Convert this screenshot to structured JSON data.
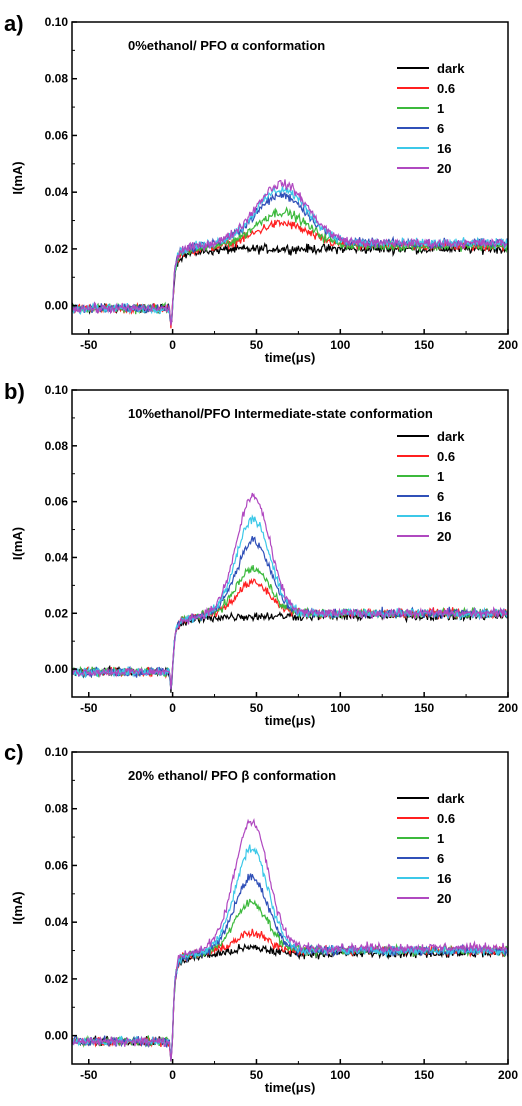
{
  "chart_data": [
    {
      "type": "line",
      "panel_label": "a)",
      "title": "0%ethanol/ PFO α conformation",
      "xlabel": "time(μs)",
      "ylabel": "I(mA)",
      "xlim": [
        -60,
        200
      ],
      "ylim": [
        -0.01,
        0.1
      ],
      "x_ticks": [
        -50,
        0,
        50,
        100,
        150,
        200
      ],
      "y_ticks": [
        0.0,
        0.02,
        0.04,
        0.06,
        0.08,
        0.1
      ],
      "x_tick_labels": [
        "-50",
        "0",
        "50",
        "100",
        "150",
        "200"
      ],
      "y_tick_labels": [
        "0.00",
        "0.02",
        "0.04",
        "0.06",
        "0.08",
        "0.10"
      ],
      "grid": false,
      "legend": "top-right",
      "series": [
        {
          "name": "dark",
          "color": "#000000",
          "baseline": -0.001,
          "plateau": 0.02,
          "peak": 0.0,
          "peak_time": 65,
          "peak_width": 22
        },
        {
          "name": "0.6",
          "color": "#ff2020",
          "baseline": -0.001,
          "plateau": 0.021,
          "peak": 0.008,
          "peak_time": 65,
          "peak_width": 22
        },
        {
          "name": "1",
          "color": "#3cb93c",
          "baseline": -0.001,
          "plateau": 0.021,
          "peak": 0.012,
          "peak_time": 65,
          "peak_width": 22
        },
        {
          "name": "6",
          "color": "#3050b8",
          "baseline": -0.001,
          "plateau": 0.022,
          "peak": 0.017,
          "peak_time": 65,
          "peak_width": 22
        },
        {
          "name": "16",
          "color": "#3cc8e8",
          "baseline": -0.001,
          "plateau": 0.022,
          "peak": 0.019,
          "peak_time": 65,
          "peak_width": 22
        },
        {
          "name": "20",
          "color": "#b048c0",
          "baseline": -0.001,
          "plateau": 0.022,
          "peak": 0.021,
          "peak_time": 65,
          "peak_width": 22
        }
      ]
    },
    {
      "type": "line",
      "panel_label": "b)",
      "title": "10%ethanol/PFO Intermediate-state conformation",
      "xlabel": "time(μs)",
      "ylabel": "I(mA)",
      "xlim": [
        -60,
        200
      ],
      "ylim": [
        -0.01,
        0.1
      ],
      "x_ticks": [
        -50,
        0,
        50,
        100,
        150,
        200
      ],
      "y_ticks": [
        0.0,
        0.02,
        0.04,
        0.06,
        0.08,
        0.1
      ],
      "x_tick_labels": [
        "-50",
        "0",
        "50",
        "100",
        "150",
        "200"
      ],
      "y_tick_labels": [
        "0.00",
        "0.02",
        "0.04",
        "0.06",
        "0.08",
        "0.10"
      ],
      "grid": false,
      "legend": "top-right",
      "series": [
        {
          "name": "dark",
          "color": "#000000",
          "baseline": -0.001,
          "plateau": 0.019,
          "peak": 0.0,
          "peak_time": 48,
          "peak_width": 14
        },
        {
          "name": "0.6",
          "color": "#ff2020",
          "baseline": -0.001,
          "plateau": 0.02,
          "peak": 0.011,
          "peak_time": 48,
          "peak_width": 14
        },
        {
          "name": "1",
          "color": "#3cb93c",
          "baseline": -0.001,
          "plateau": 0.02,
          "peak": 0.016,
          "peak_time": 48,
          "peak_width": 14
        },
        {
          "name": "6",
          "color": "#3050b8",
          "baseline": -0.001,
          "plateau": 0.02,
          "peak": 0.026,
          "peak_time": 48,
          "peak_width": 14
        },
        {
          "name": "16",
          "color": "#3cc8e8",
          "baseline": -0.001,
          "plateau": 0.02,
          "peak": 0.034,
          "peak_time": 48,
          "peak_width": 14
        },
        {
          "name": "20",
          "color": "#b048c0",
          "baseline": -0.001,
          "plateau": 0.02,
          "peak": 0.042,
          "peak_time": 48,
          "peak_width": 14
        }
      ]
    },
    {
      "type": "line",
      "panel_label": "c)",
      "title": "20% ethanol/ PFO β conformation",
      "xlabel": "time(μs)",
      "ylabel": "I(mA)",
      "xlim": [
        -60,
        200
      ],
      "ylim": [
        -0.01,
        0.1
      ],
      "x_ticks": [
        -50,
        0,
        50,
        100,
        150,
        200
      ],
      "y_ticks": [
        0.0,
        0.02,
        0.04,
        0.06,
        0.08,
        0.1
      ],
      "x_tick_labels": [
        "-50",
        "0",
        "50",
        "100",
        "150",
        "200"
      ],
      "y_tick_labels": [
        "0.00",
        "0.02",
        "0.04",
        "0.06",
        "0.08",
        "0.10"
      ],
      "grid": false,
      "legend": "top-right",
      "series": [
        {
          "name": "dark",
          "color": "#000000",
          "baseline": -0.002,
          "plateau": 0.029,
          "peak": 0.002,
          "peak_time": 47,
          "peak_width": 14
        },
        {
          "name": "0.6",
          "color": "#ff2020",
          "baseline": -0.002,
          "plateau": 0.03,
          "peak": 0.006,
          "peak_time": 47,
          "peak_width": 14
        },
        {
          "name": "1",
          "color": "#3cb93c",
          "baseline": -0.002,
          "plateau": 0.03,
          "peak": 0.017,
          "peak_time": 47,
          "peak_width": 14
        },
        {
          "name": "6",
          "color": "#3050b8",
          "baseline": -0.002,
          "plateau": 0.03,
          "peak": 0.026,
          "peak_time": 47,
          "peak_width": 14
        },
        {
          "name": "16",
          "color": "#3cc8e8",
          "baseline": -0.002,
          "plateau": 0.03,
          "peak": 0.036,
          "peak_time": 47,
          "peak_width": 14
        },
        {
          "name": "20",
          "color": "#b048c0",
          "baseline": -0.002,
          "plateau": 0.031,
          "peak": 0.045,
          "peak_time": 47,
          "peak_width": 14
        }
      ]
    }
  ]
}
